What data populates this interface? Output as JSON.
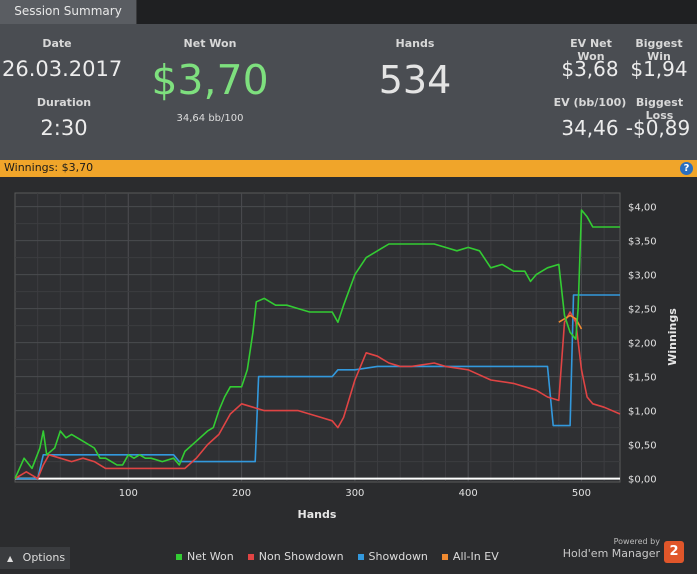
{
  "tab": {
    "label": "Session Summary"
  },
  "summary": {
    "date_label": "Date",
    "date_value": "26.03.2017",
    "duration_label": "Duration",
    "duration_value": "2:30",
    "netwon_label": "Net Won",
    "netwon_value": "$3,70",
    "netwon_sub": "34,64 bb/100",
    "hands_label": "Hands",
    "hands_value": "534",
    "ev_netwon_label": "EV Net Won",
    "ev_netwon_value": "$3,68",
    "biggest_win_label": "Biggest Win",
    "biggest_win_value": "$1,94",
    "ev_bb_label": "EV (bb/100)",
    "ev_bb_value": "34,46",
    "biggest_loss_label": "Biggest Loss",
    "biggest_loss_value": "-$0,89"
  },
  "winbar": {
    "text": "Winnings: $3,70",
    "help": "?"
  },
  "colors": {
    "net_won": "#33cc33",
    "non_showdown": "#e04444",
    "showdown": "#3399dd",
    "allin_ev": "#f08a30",
    "accent": "#f0a52a"
  },
  "chart_data": {
    "type": "line",
    "xlabel": "Hands",
    "ylabel": "Winnings",
    "xlim": [
      0,
      534
    ],
    "ylim": [
      -0.05,
      4.2
    ],
    "x_ticks": [
      100,
      200,
      300,
      400,
      500
    ],
    "y_ticks": [
      0.0,
      0.5,
      1.0,
      1.5,
      2.0,
      2.5,
      3.0,
      3.5,
      4.0
    ],
    "y_tick_labels": [
      "$0,00",
      "$0,50",
      "$1,00",
      "$1,50",
      "$2,00",
      "$2,50",
      "$3,00",
      "$3,50",
      "$4,00"
    ],
    "grid": true,
    "legend": "bottom",
    "series": [
      {
        "name": "Net Won",
        "x": [
          0,
          8,
          15,
          22,
          25,
          28,
          35,
          40,
          45,
          50,
          60,
          70,
          75,
          80,
          85,
          90,
          95,
          100,
          105,
          110,
          115,
          120,
          130,
          140,
          145,
          150,
          160,
          170,
          175,
          180,
          185,
          190,
          200,
          205,
          210,
          213,
          220,
          230,
          240,
          250,
          260,
          270,
          280,
          285,
          290,
          300,
          310,
          320,
          330,
          350,
          370,
          380,
          390,
          400,
          410,
          420,
          430,
          440,
          450,
          455,
          460,
          470,
          480,
          485,
          490,
          495,
          497,
          500,
          505,
          510,
          520,
          534
        ],
        "y": [
          0.0,
          0.3,
          0.15,
          0.45,
          0.7,
          0.35,
          0.45,
          0.7,
          0.6,
          0.65,
          0.55,
          0.45,
          0.3,
          0.3,
          0.25,
          0.2,
          0.2,
          0.35,
          0.3,
          0.35,
          0.3,
          0.3,
          0.25,
          0.3,
          0.2,
          0.4,
          0.55,
          0.7,
          0.75,
          1.0,
          1.2,
          1.35,
          1.35,
          1.6,
          2.15,
          2.6,
          2.65,
          2.55,
          2.55,
          2.5,
          2.45,
          2.45,
          2.45,
          2.3,
          2.55,
          3.0,
          3.25,
          3.35,
          3.45,
          3.45,
          3.45,
          3.4,
          3.35,
          3.4,
          3.35,
          3.1,
          3.15,
          3.05,
          3.05,
          2.9,
          3.0,
          3.1,
          3.15,
          2.4,
          2.15,
          2.05,
          2.5,
          3.95,
          3.85,
          3.7,
          3.7,
          3.7
        ]
      },
      {
        "name": "Non Showdown",
        "x": [
          0,
          10,
          20,
          25,
          30,
          40,
          50,
          60,
          70,
          80,
          90,
          100,
          110,
          120,
          130,
          140,
          150,
          160,
          170,
          180,
          190,
          200,
          210,
          220,
          230,
          240,
          250,
          260,
          270,
          280,
          285,
          290,
          300,
          310,
          320,
          330,
          340,
          350,
          370,
          380,
          400,
          420,
          440,
          460,
          470,
          480,
          485,
          490,
          495,
          500,
          505,
          510,
          520,
          534
        ],
        "y": [
          0.0,
          0.1,
          0.0,
          0.2,
          0.35,
          0.3,
          0.25,
          0.3,
          0.25,
          0.15,
          0.15,
          0.15,
          0.15,
          0.15,
          0.15,
          0.15,
          0.15,
          0.3,
          0.5,
          0.65,
          0.95,
          1.1,
          1.05,
          1.0,
          1.0,
          1.0,
          1.0,
          0.95,
          0.9,
          0.85,
          0.75,
          0.9,
          1.45,
          1.85,
          1.8,
          1.7,
          1.65,
          1.65,
          1.7,
          1.65,
          1.6,
          1.45,
          1.4,
          1.3,
          1.2,
          1.15,
          2.3,
          2.45,
          2.3,
          1.6,
          1.2,
          1.1,
          1.05,
          0.95
        ]
      },
      {
        "name": "Showdown",
        "x": [
          0,
          5,
          20,
          25,
          50,
          80,
          100,
          140,
          145,
          190,
          210,
          212,
          215,
          260,
          280,
          285,
          290,
          300,
          320,
          330,
          340,
          380,
          400,
          440,
          470,
          475,
          480,
          490,
          493,
          495,
          500,
          510,
          534
        ],
        "y": [
          0.0,
          0.0,
          0.0,
          0.35,
          0.35,
          0.35,
          0.35,
          0.35,
          0.25,
          0.25,
          0.25,
          0.25,
          1.5,
          1.5,
          1.5,
          1.6,
          1.6,
          1.6,
          1.65,
          1.65,
          1.65,
          1.65,
          1.65,
          1.65,
          1.65,
          0.78,
          0.78,
          0.78,
          2.7,
          2.7,
          2.7,
          2.7,
          2.7
        ]
      },
      {
        "name": "All-In EV",
        "x": [
          480,
          485,
          490,
          495,
          500
        ],
        "y": [
          2.3,
          2.35,
          2.4,
          2.35,
          2.2
        ]
      }
    ]
  },
  "bottom": {
    "options_label": "Options",
    "options_icon": "caret-up-icon",
    "powered": "Powered by",
    "brand": "Hold'em Manager",
    "badge": "2"
  }
}
